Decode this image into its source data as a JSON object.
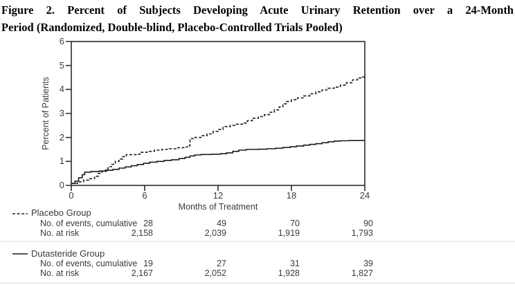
{
  "title": {
    "line1": "Figure 2. Percent of Subjects Developing Acute Urinary Retention over a 24-Month",
    "line2": "Period (Randomized, Double-blind, Placebo-Controlled Trials Pooled)"
  },
  "chart": {
    "ylabel": "Percent of Patients",
    "xlabel": "Months of Treatment",
    "yticks": [
      "6",
      "5",
      "4",
      "3",
      "2",
      "1",
      "0"
    ],
    "xticks": [
      "0",
      "6",
      "12",
      "18",
      "24"
    ]
  },
  "chart_data": {
    "type": "line",
    "title": "Percent of Subjects Developing Acute Urinary Retention over a 24-Month Period (Randomized, Double-blind, Placebo-Controlled Trials Pooled)",
    "xlabel": "Months of Treatment",
    "ylabel": "Percent of Patients",
    "xlim": [
      0,
      24
    ],
    "ylim": [
      0,
      6
    ],
    "xticks": [
      0,
      6,
      12,
      18,
      24
    ],
    "yticks": [
      0,
      1,
      2,
      3,
      4,
      5,
      6
    ],
    "grid": false,
    "legend_position": "below-left",
    "curve_style": "step-after (Kaplan-Meier cumulative incidence)",
    "series": [
      {
        "name": "Placebo Group",
        "style": "dashed",
        "points": [
          [
            0,
            0.08
          ],
          [
            0.5,
            0.15
          ],
          [
            1,
            0.22
          ],
          [
            1.5,
            0.28
          ],
          [
            1.9,
            0.38
          ],
          [
            2.2,
            0.5
          ],
          [
            2.5,
            0.58
          ],
          [
            2.8,
            0.68
          ],
          [
            3.0,
            0.78
          ],
          [
            3.3,
            0.88
          ],
          [
            3.6,
            1.0
          ],
          [
            3.9,
            1.1
          ],
          [
            4.2,
            1.2
          ],
          [
            4.5,
            1.28
          ],
          [
            5.4,
            1.3
          ],
          [
            5.7,
            1.38
          ],
          [
            6.2,
            1.42
          ],
          [
            6.8,
            1.47
          ],
          [
            7.4,
            1.5
          ],
          [
            8.0,
            1.53
          ],
          [
            8.6,
            1.57
          ],
          [
            9.2,
            1.6
          ],
          [
            9.5,
            1.65
          ],
          [
            9.7,
            1.95
          ],
          [
            10.1,
            2.0
          ],
          [
            10.6,
            2.07
          ],
          [
            11.1,
            2.15
          ],
          [
            11.6,
            2.25
          ],
          [
            12.0,
            2.33
          ],
          [
            12.4,
            2.45
          ],
          [
            13.0,
            2.5
          ],
          [
            13.5,
            2.55
          ],
          [
            14.0,
            2.6
          ],
          [
            14.4,
            2.7
          ],
          [
            14.8,
            2.8
          ],
          [
            15.3,
            2.87
          ],
          [
            15.8,
            2.95
          ],
          [
            16.2,
            3.05
          ],
          [
            16.6,
            3.15
          ],
          [
            17.0,
            3.27
          ],
          [
            17.3,
            3.4
          ],
          [
            17.6,
            3.5
          ],
          [
            18.0,
            3.57
          ],
          [
            18.5,
            3.65
          ],
          [
            19.0,
            3.73
          ],
          [
            19.5,
            3.82
          ],
          [
            20.0,
            3.9
          ],
          [
            20.5,
            3.98
          ],
          [
            21.0,
            4.05
          ],
          [
            21.5,
            4.1
          ],
          [
            22.0,
            4.18
          ],
          [
            22.5,
            4.28
          ],
          [
            23.0,
            4.4
          ],
          [
            23.4,
            4.48
          ],
          [
            23.7,
            4.52
          ],
          [
            24,
            4.62
          ]
        ]
      },
      {
        "name": "Dutasteride Group",
        "style": "solid",
        "points": [
          [
            0,
            0.08
          ],
          [
            0.3,
            0.18
          ],
          [
            0.6,
            0.32
          ],
          [
            0.9,
            0.45
          ],
          [
            1.1,
            0.55
          ],
          [
            1.6,
            0.58
          ],
          [
            2.3,
            0.6
          ],
          [
            2.9,
            0.63
          ],
          [
            3.4,
            0.67
          ],
          [
            3.9,
            0.72
          ],
          [
            4.4,
            0.77
          ],
          [
            4.9,
            0.82
          ],
          [
            5.4,
            0.87
          ],
          [
            5.9,
            0.92
          ],
          [
            6.4,
            0.97
          ],
          [
            7.0,
            1.0
          ],
          [
            7.6,
            1.04
          ],
          [
            8.2,
            1.07
          ],
          [
            8.8,
            1.12
          ],
          [
            9.3,
            1.17
          ],
          [
            9.7,
            1.23
          ],
          [
            10.1,
            1.27
          ],
          [
            10.6,
            1.29
          ],
          [
            11.5,
            1.3
          ],
          [
            12.2,
            1.32
          ],
          [
            12.7,
            1.36
          ],
          [
            13.2,
            1.42
          ],
          [
            13.7,
            1.47
          ],
          [
            14.3,
            1.5
          ],
          [
            15.3,
            1.51
          ],
          [
            16.0,
            1.53
          ],
          [
            16.7,
            1.55
          ],
          [
            17.3,
            1.58
          ],
          [
            17.9,
            1.61
          ],
          [
            18.4,
            1.64
          ],
          [
            19.0,
            1.68
          ],
          [
            19.5,
            1.71
          ],
          [
            20.0,
            1.74
          ],
          [
            20.5,
            1.78
          ],
          [
            21.0,
            1.82
          ],
          [
            21.5,
            1.85
          ],
          [
            22.0,
            1.86
          ],
          [
            22.7,
            1.87
          ],
          [
            24,
            1.87
          ]
        ]
      }
    ],
    "at_risk_table": {
      "timepoints_months": [
        6,
        12,
        18,
        24
      ],
      "placebo": {
        "events_cumulative": [
          28,
          49,
          70,
          90
        ],
        "at_risk": [
          2158,
          2039,
          1919,
          1793
        ]
      },
      "dutasteride": {
        "events_cumulative": [
          19,
          27,
          31,
          39
        ],
        "at_risk": [
          2167,
          2052,
          1928,
          1827
        ]
      }
    }
  },
  "table": {
    "placebo": {
      "events_label": "No. of events, cumulative",
      "risk_label": "No. at risk",
      "events": [
        "28",
        "49",
        "70",
        "90"
      ],
      "risk": [
        "2,158",
        "2,039",
        "1,919",
        "1,793"
      ]
    },
    "dutasteride": {
      "events_label": "No. of events, cumulative",
      "risk_label": "No. at risk",
      "events": [
        "19",
        "27",
        "31",
        "39"
      ],
      "risk": [
        "2,167",
        "2,052",
        "1,928",
        "1,827"
      ]
    }
  },
  "colors": {
    "background": "#ffffff",
    "title_text": "#000000",
    "chart_text": "#3a3a3a",
    "curve": "#1c1c1c",
    "axis": "#2b2b2b",
    "separator": "#d9d9d9"
  }
}
